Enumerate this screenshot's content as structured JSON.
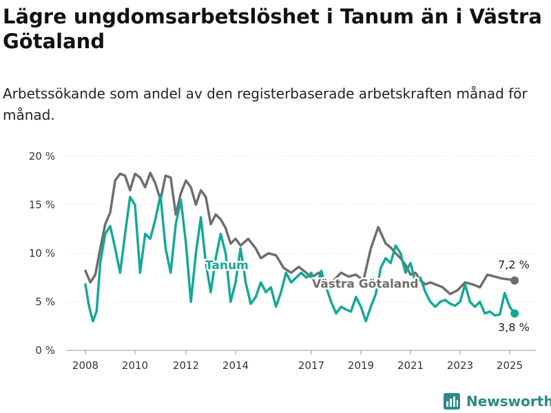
{
  "title": "Lägre ungdomsarbetslöshet i Tanum än i Västra Götaland",
  "subtitle": "Arbetssökande som andel av den registerbaserade arbetskraften månad för månad.",
  "brand": "Newsworthy",
  "colors": {
    "tanum": "#14a896",
    "vg": "#6d6d6d",
    "grid": "#d9d9d9",
    "brand": "#2c8a87"
  },
  "chart_data": {
    "type": "line",
    "ylim": [
      0,
      20
    ],
    "y_ticks": [
      0,
      5,
      10,
      15,
      20
    ],
    "y_tick_labels": [
      "0 %",
      "5 %",
      "10 %",
      "15 %",
      "20 %"
    ],
    "x_ticks": [
      2008,
      2010,
      2012,
      2014,
      2017,
      2019,
      2021,
      2023,
      2025
    ],
    "grid": true,
    "end_labels": {
      "vg": "7,2 %",
      "tanum": "3,8 %"
    },
    "series": [
      {
        "name": "Västra Götaland",
        "key": "vg",
        "x": [
          2008.0,
          2008.2,
          2008.4,
          2008.6,
          2008.8,
          2009.0,
          2009.2,
          2009.4,
          2009.6,
          2009.8,
          2010.0,
          2010.2,
          2010.4,
          2010.6,
          2010.8,
          2011.0,
          2011.2,
          2011.4,
          2011.6,
          2011.8,
          2012.0,
          2012.2,
          2012.4,
          2012.6,
          2012.8,
          2013.0,
          2013.2,
          2013.4,
          2013.6,
          2013.8,
          2014.0,
          2014.2,
          2014.5,
          2014.8,
          2015.0,
          2015.3,
          2015.6,
          2015.9,
          2016.2,
          2016.5,
          2016.8,
          2017.0,
          2017.3,
          2017.6,
          2017.9,
          2018.2,
          2018.5,
          2018.8,
          2019.1,
          2019.4,
          2019.7,
          2020.0,
          2020.2,
          2020.4,
          2020.6,
          2020.8,
          2021.0,
          2021.2,
          2021.4,
          2021.6,
          2021.8,
          2022.0,
          2022.3,
          2022.6,
          2022.9,
          2023.2,
          2023.5,
          2023.8,
          2024.1,
          2024.4,
          2024.7,
          2025.0,
          2025.2
        ],
        "values": [
          8.2,
          7.0,
          7.8,
          10.5,
          13.0,
          14.2,
          17.5,
          18.2,
          18.0,
          16.5,
          18.2,
          17.8,
          16.8,
          18.3,
          17.2,
          15.5,
          18.0,
          17.8,
          14.0,
          16.2,
          17.5,
          16.8,
          15.0,
          16.5,
          15.8,
          13.0,
          14.0,
          13.5,
          12.6,
          11.0,
          11.5,
          10.8,
          11.5,
          10.5,
          9.5,
          10.0,
          9.8,
          8.5,
          8.0,
          8.6,
          8.0,
          7.5,
          8.0,
          6.8,
          7.2,
          8.0,
          7.6,
          7.8,
          7.2,
          10.5,
          12.7,
          11.0,
          10.6,
          10.0,
          9.5,
          8.8,
          7.8,
          8.0,
          7.2,
          6.8,
          7.0,
          6.8,
          6.5,
          5.8,
          6.2,
          7.0,
          6.8,
          6.5,
          7.8,
          7.6,
          7.4,
          7.3,
          7.2
        ]
      },
      {
        "name": "Tanum",
        "key": "tanum",
        "x": [
          2008.0,
          2008.15,
          2008.3,
          2008.45,
          2008.6,
          2008.8,
          2009.0,
          2009.2,
          2009.4,
          2009.6,
          2009.8,
          2010.0,
          2010.2,
          2010.4,
          2010.6,
          2010.8,
          2011.0,
          2011.2,
          2011.4,
          2011.6,
          2011.8,
          2012.0,
          2012.2,
          2012.4,
          2012.6,
          2012.8,
          2013.0,
          2013.2,
          2013.4,
          2013.6,
          2013.8,
          2014.0,
          2014.2,
          2014.4,
          2014.6,
          2014.8,
          2015.0,
          2015.2,
          2015.4,
          2015.6,
          2015.8,
          2016.0,
          2016.2,
          2016.4,
          2016.6,
          2016.8,
          2017.0,
          2017.2,
          2017.4,
          2017.6,
          2017.8,
          2018.0,
          2018.2,
          2018.4,
          2018.6,
          2018.8,
          2019.0,
          2019.2,
          2019.4,
          2019.6,
          2019.8,
          2020.0,
          2020.2,
          2020.4,
          2020.6,
          2020.8,
          2021.0,
          2021.2,
          2021.4,
          2021.6,
          2021.8,
          2022.0,
          2022.2,
          2022.4,
          2022.6,
          2022.8,
          2023.0,
          2023.2,
          2023.4,
          2023.6,
          2023.8,
          2024.0,
          2024.2,
          2024.4,
          2024.6,
          2024.8,
          2025.0,
          2025.2
        ],
        "values": [
          6.8,
          4.5,
          3.0,
          4.0,
          9.0,
          12.0,
          12.8,
          10.5,
          8.0,
          12.0,
          15.8,
          15.0,
          8.0,
          12.0,
          11.5,
          13.5,
          16.0,
          10.5,
          8.0,
          13.0,
          15.5,
          11.0,
          5.0,
          10.0,
          13.7,
          9.0,
          6.0,
          9.5,
          12.0,
          10.0,
          5.0,
          7.0,
          10.5,
          7.0,
          4.8,
          5.5,
          7.0,
          6.0,
          6.5,
          4.5,
          6.0,
          8.0,
          7.0,
          7.5,
          8.0,
          7.5,
          8.0,
          6.5,
          8.2,
          6.5,
          5.0,
          3.8,
          4.5,
          4.2,
          4.0,
          5.5,
          4.5,
          3.0,
          4.5,
          5.8,
          8.5,
          9.5,
          9.0,
          10.8,
          10.0,
          8.0,
          9.0,
          7.0,
          7.5,
          6.0,
          5.0,
          4.5,
          5.0,
          5.2,
          4.8,
          4.6,
          5.0,
          6.8,
          5.0,
          4.5,
          5.0,
          3.8,
          4.0,
          3.6,
          3.7,
          5.9,
          4.5,
          3.8
        ]
      }
    ],
    "inline_labels": {
      "tanum": "Tanum",
      "vg": "Västra Götaland"
    }
  }
}
